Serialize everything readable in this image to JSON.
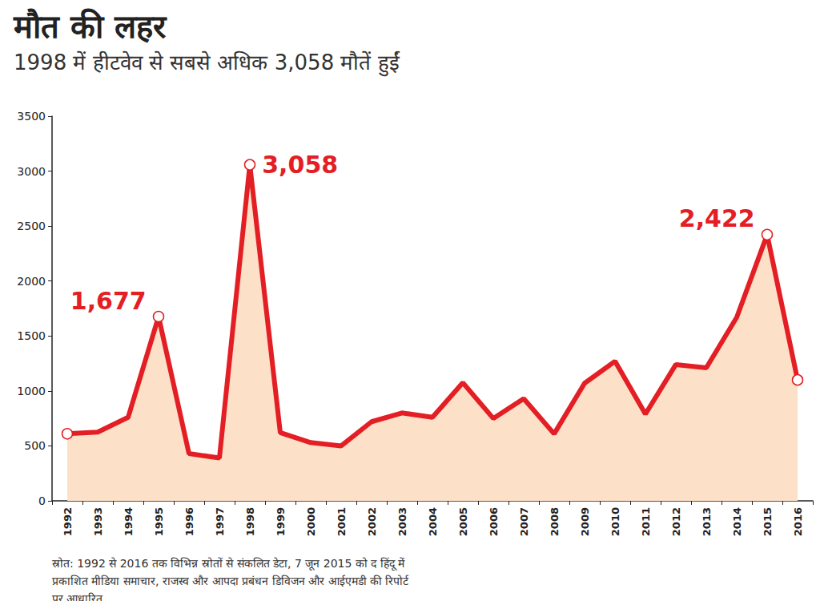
{
  "chart_data": {
    "type": "line",
    "title": "मौत की लहर",
    "subtitle": "1998 में हीटवेव से सबसे अधिक 3,058 मौतें हुईं",
    "source": "स्रोत: 1992 से 2016 तक विभिन्न स्रोतों से संकलित डेटा, 7 जून 2015 को द हिंदू में प्रकाशित मीडिया समाचार, राजस्व और आपदा प्रबंधन डिविजन और आईएमडी की रिपोर्ट पर आधारित",
    "categories": [
      "1992",
      "1993",
      "1994",
      "1995",
      "1996",
      "1997",
      "1998",
      "1999",
      "2000",
      "2001",
      "2002",
      "2003",
      "2004",
      "2005",
      "2006",
      "2007",
      "2008",
      "2009",
      "2010",
      "2011",
      "2012",
      "2013",
      "2014",
      "2015",
      "2016"
    ],
    "values": [
      610,
      625,
      760,
      1677,
      430,
      390,
      3058,
      620,
      530,
      500,
      720,
      800,
      760,
      1075,
      750,
      930,
      610,
      1070,
      1270,
      790,
      1240,
      1210,
      1670,
      2422,
      1100
    ],
    "value_labels": [
      null,
      null,
      null,
      "1,677",
      null,
      null,
      "3,058",
      null,
      null,
      null,
      null,
      null,
      null,
      null,
      null,
      null,
      null,
      null,
      null,
      null,
      null,
      null,
      null,
      "2,422",
      null
    ],
    "data_labels": true,
    "color": "#e31e24",
    "marker": "circle",
    "ylim": [
      0,
      3500
    ],
    "yticks": [
      0,
      500,
      1000,
      1500,
      2000,
      2500,
      3000,
      3500
    ],
    "grid": false
  }
}
